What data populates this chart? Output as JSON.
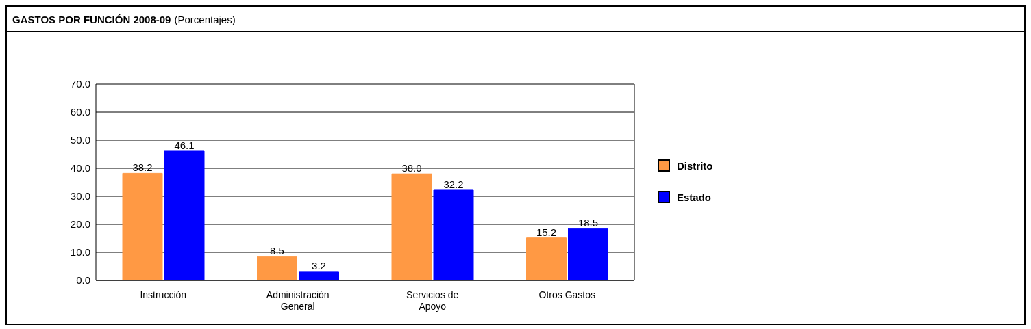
{
  "chart_data": {
    "type": "bar",
    "title": "GASTOS POR FUNCIÓN 2008-09",
    "subtitle": "(Porcentajes)",
    "categories": [
      "Instrucción",
      "Administración General",
      "Servicios de Apoyo",
      "Otros Gastos"
    ],
    "series": [
      {
        "name": "Distrito",
        "color": "#ff9944",
        "values": [
          38.2,
          8.5,
          38.0,
          15.2
        ],
        "value_labels": [
          "38.2",
          "8.5",
          "38.0",
          "15.2"
        ]
      },
      {
        "name": "Estado",
        "color": "#0000ff",
        "values": [
          46.1,
          3.2,
          32.2,
          18.5
        ],
        "value_labels": [
          "46.1",
          "3.2",
          "32.2",
          "18.5"
        ]
      }
    ],
    "ylim": [
      0,
      70
    ],
    "yticks": [
      {
        "value": 0,
        "label": "0.0"
      },
      {
        "value": 10,
        "label": "10.0"
      },
      {
        "value": 20,
        "label": "20.0"
      },
      {
        "value": 30,
        "label": "30.0"
      },
      {
        "value": 40,
        "label": "40.0"
      },
      {
        "value": 50,
        "label": "50.0"
      },
      {
        "value": 60,
        "label": "60.0"
      },
      {
        "value": 70,
        "label": "70.0"
      }
    ],
    "grid": "y",
    "legend": "right"
  }
}
